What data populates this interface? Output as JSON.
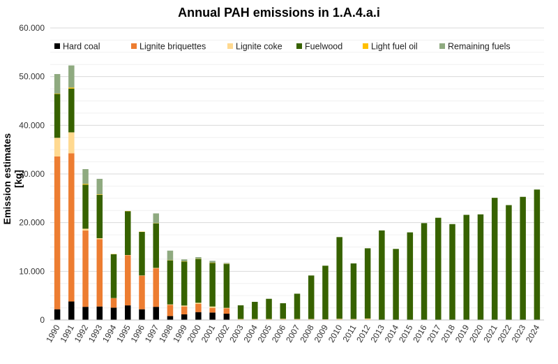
{
  "chart_data": {
    "type": "bar",
    "stacked": true,
    "title": "Annual PAH emissions in 1.A.4.a.i",
    "xlabel": "",
    "ylabel": "Emission estimates [kg]",
    "ylim": [
      0,
      60000
    ],
    "yticks": [
      "0",
      "10.000",
      "20.000",
      "30.000",
      "40.000",
      "50.000",
      "60.000"
    ],
    "grid": true,
    "legend_position": "top",
    "categories": [
      "1990",
      "1991",
      "1992",
      "1993",
      "1994",
      "1995",
      "1996",
      "1997",
      "1998",
      "1999",
      "2000",
      "2001",
      "2002",
      "2003",
      "2004",
      "2005",
      "2006",
      "2007",
      "2008",
      "2009",
      "2010",
      "2011",
      "2012",
      "2013",
      "2014",
      "2015",
      "2016",
      "2017",
      "2018",
      "2019",
      "2020",
      "2021",
      "2022",
      "2023",
      "2024"
    ],
    "series": [
      {
        "name": "Hard coal",
        "color": "#000000",
        "values": [
          2200,
          3800,
          2700,
          2770,
          2530,
          3000,
          2200,
          2700,
          800,
          1150,
          1620,
          1530,
          1290,
          0,
          0,
          0,
          0,
          0,
          0,
          0,
          0,
          0,
          0,
          0,
          0,
          0,
          0,
          0,
          0,
          0,
          0,
          0,
          0,
          0,
          0
        ]
      },
      {
        "name": "Lignite briquettes",
        "color": "#ED7D31",
        "values": [
          31400,
          30450,
          15670,
          13830,
          1920,
          10300,
          6900,
          7900,
          2300,
          1620,
          1680,
          950,
          1100,
          0,
          0,
          0,
          0,
          0,
          0,
          0,
          0,
          0,
          50,
          0,
          0,
          0,
          0,
          0,
          0,
          0,
          0,
          0,
          0,
          0,
          0
        ]
      },
      {
        "name": "Lignite coke",
        "color": "#FFD990",
        "values": [
          3830,
          4300,
          380,
          200,
          50,
          50,
          50,
          100,
          100,
          200,
          240,
          290,
          100,
          200,
          200,
          200,
          250,
          200,
          200,
          150,
          250,
          200,
          250,
          0,
          0,
          0,
          0,
          0,
          0,
          0,
          0,
          0,
          0,
          0,
          0
        ]
      },
      {
        "name": "Fuelwood",
        "color": "#376200",
        "values": [
          9000,
          9000,
          9050,
          8900,
          9000,
          9000,
          8950,
          9150,
          9050,
          9030,
          9000,
          8950,
          8990,
          2810,
          3530,
          4150,
          3190,
          5200,
          8940,
          11000,
          16780,
          11420,
          14430,
          18400,
          14600,
          18000,
          19900,
          21000,
          19700,
          21600,
          21700,
          25100,
          23600,
          25300,
          26800
        ]
      },
      {
        "name": "Light fuel oil",
        "color": "#FFC000",
        "values": [
          100,
          200,
          150,
          100,
          50,
          50,
          50,
          50,
          50,
          50,
          50,
          50,
          50,
          0,
          0,
          0,
          0,
          0,
          0,
          0,
          0,
          0,
          0,
          0,
          0,
          0,
          0,
          0,
          0,
          0,
          0,
          0,
          0,
          0,
          0
        ]
      },
      {
        "name": "Remaining fuels",
        "color": "#8FAA80",
        "values": [
          4000,
          4550,
          3050,
          3200,
          0,
          0,
          0,
          2000,
          1950,
          400,
          320,
          380,
          190,
          0,
          0,
          0,
          0,
          0,
          0,
          0,
          0,
          0,
          0,
          0,
          0,
          0,
          0,
          0,
          0,
          0,
          0,
          0,
          0,
          0,
          0
        ]
      }
    ]
  }
}
